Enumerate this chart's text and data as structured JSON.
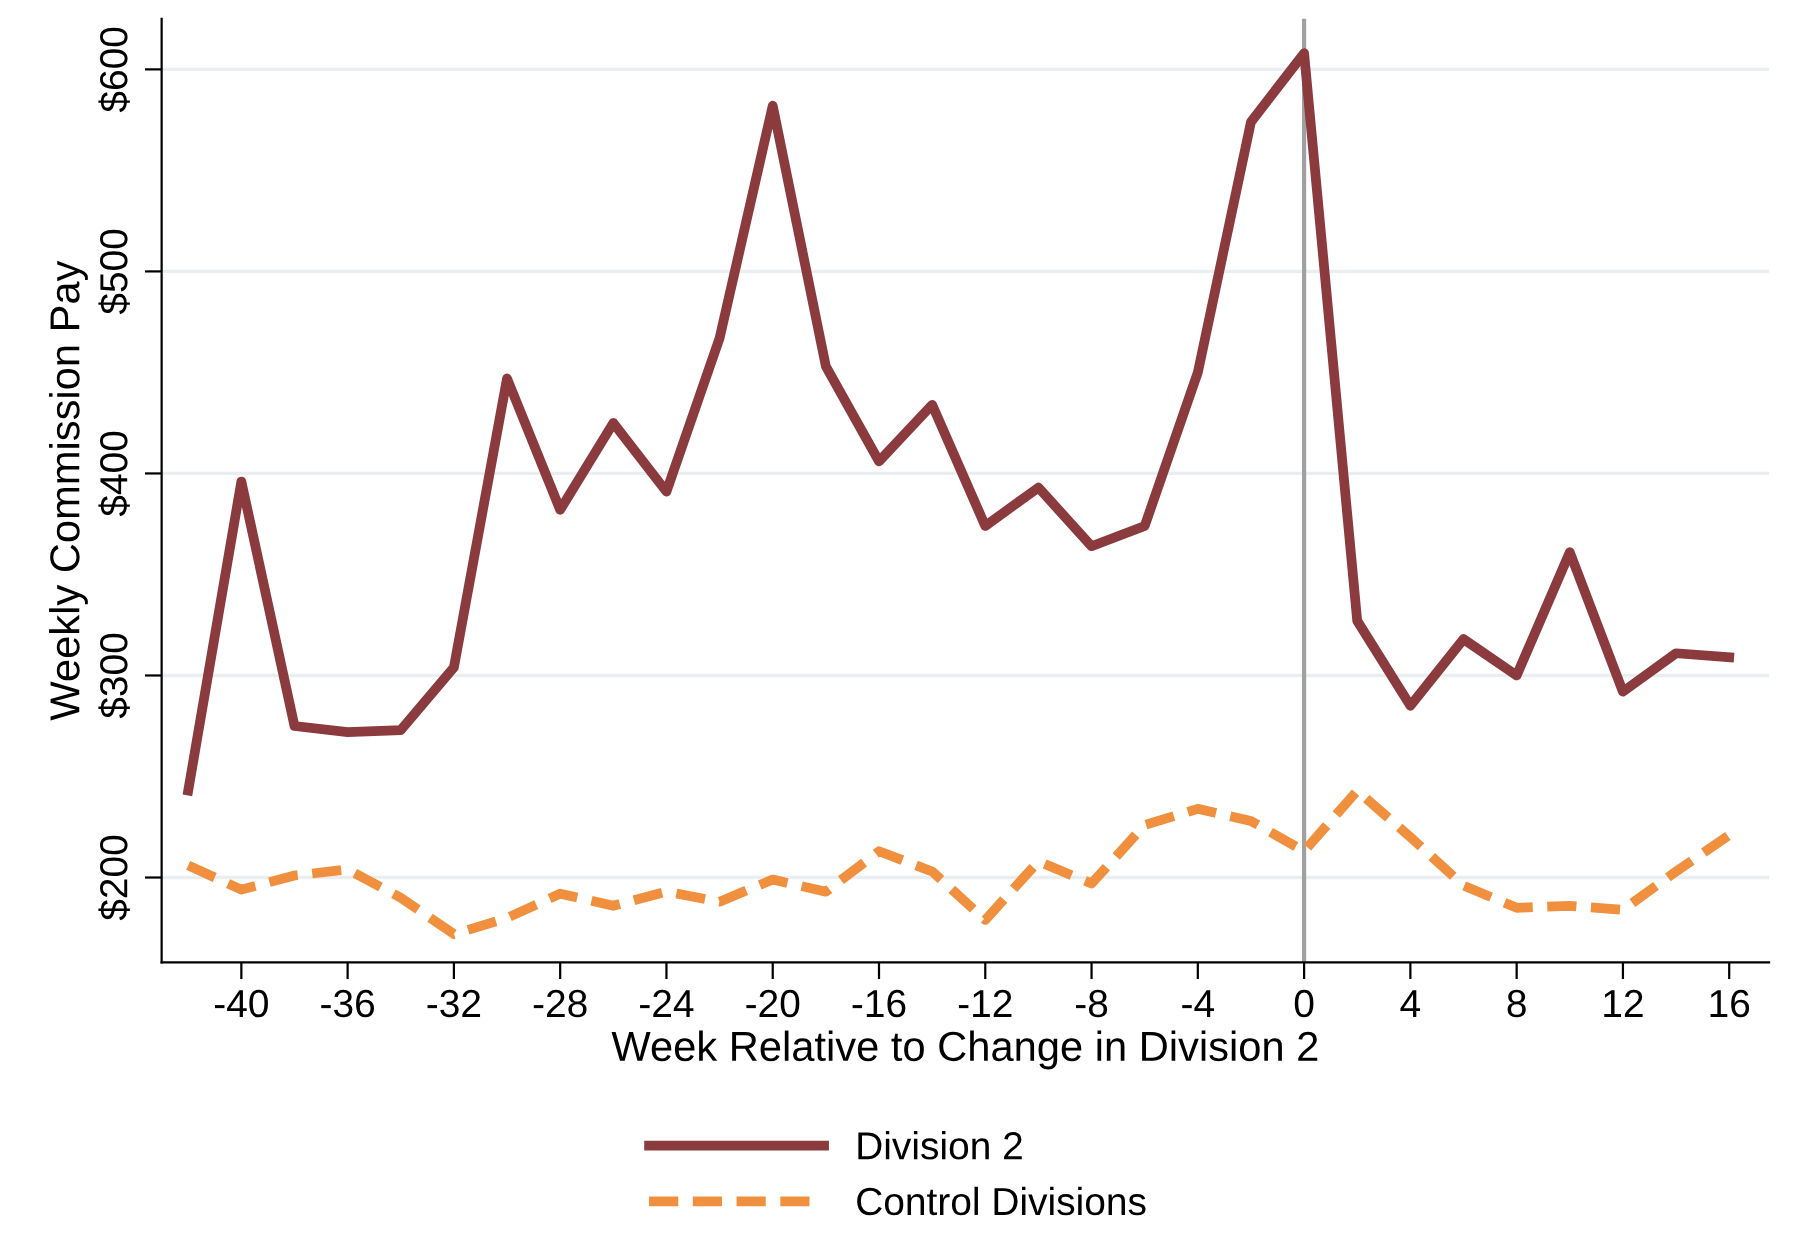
{
  "chart_data": {
    "type": "line",
    "xlabel": "Week Relative to Change in Division 2",
    "ylabel": "Weekly Commission Pay",
    "x": [
      -42,
      -40,
      -38,
      -36,
      -34,
      -32,
      -30,
      -28,
      -26,
      -24,
      -22,
      -20,
      -18,
      -16,
      -14,
      -12,
      -10,
      -8,
      -6,
      -4,
      -2,
      0,
      2,
      4,
      6,
      8,
      10,
      12,
      14,
      16
    ],
    "series": [
      {
        "name": "Division 2",
        "color": "#8b3a3e",
        "line_style": "solid",
        "values": [
          243,
          396,
          275,
          272,
          273,
          304,
          447,
          382,
          425,
          391,
          467,
          582,
          453,
          406,
          434,
          374,
          393,
          364,
          374,
          450,
          574,
          608,
          327,
          285,
          318,
          300,
          361,
          292,
          311,
          309
        ]
      },
      {
        "name": "Control Divisions",
        "color": "#f0903e",
        "line_style": "dashed",
        "values": [
          206,
          194,
          201,
          204,
          190,
          172,
          180,
          192,
          186,
          193,
          188,
          199,
          193,
          213,
          203,
          179,
          208,
          197,
          226,
          234,
          228,
          213,
          243,
          220,
          196,
          185,
          186,
          184,
          203,
          221
        ]
      }
    ],
    "xlim": [
      -43,
      17.5
    ],
    "ylim": [
      158,
      625
    ],
    "xticks": [
      -40,
      -36,
      -32,
      -28,
      -24,
      -20,
      -16,
      -12,
      -8,
      -4,
      0,
      4,
      8,
      12,
      16
    ],
    "yticks": [
      {
        "value": 200,
        "label": "$200"
      },
      {
        "value": 300,
        "label": "$300"
      },
      {
        "value": 400,
        "label": "$400"
      },
      {
        "value": 500,
        "label": "$500"
      },
      {
        "value": 600,
        "label": "$600"
      }
    ],
    "grid": "y",
    "legend": "bottom",
    "marker": "none",
    "ref_lines": [
      {
        "axis": "x",
        "value": 0,
        "label": null,
        "color": "#a0a0a0",
        "line_style": "solid"
      }
    ]
  }
}
